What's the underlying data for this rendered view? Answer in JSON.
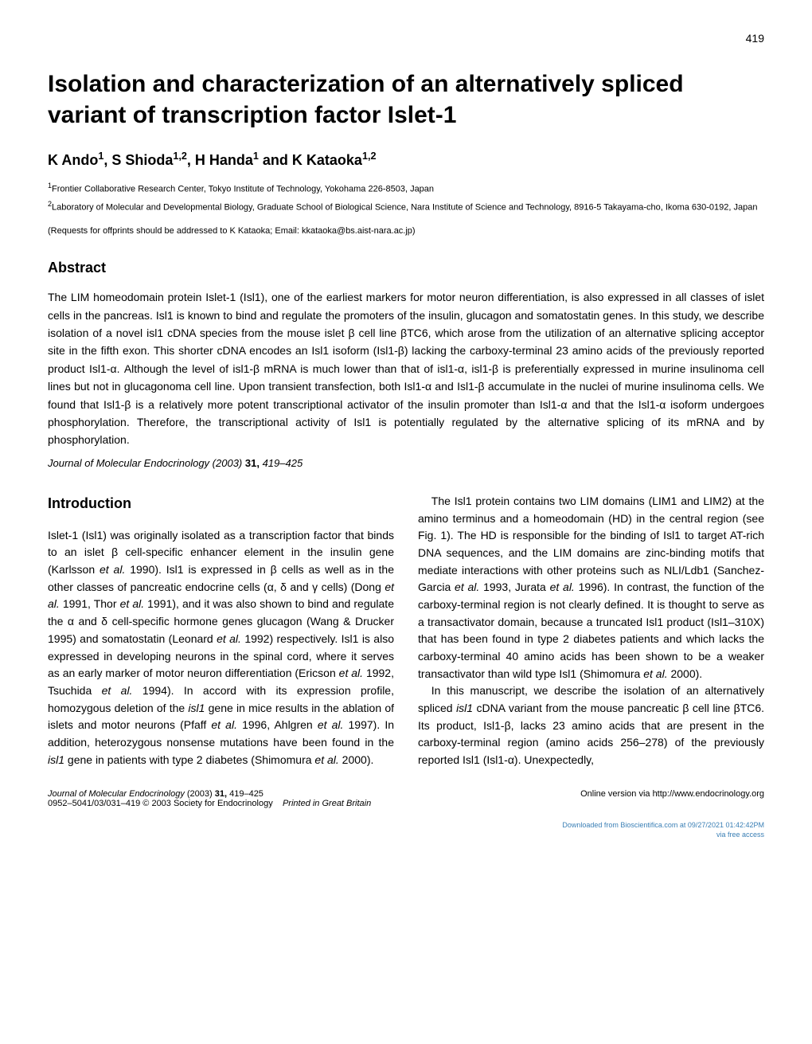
{
  "page_number": "419",
  "title": "Isolation and characterization of an alternatively spliced variant of transcription factor Islet-1",
  "authors_html": "K Ando<sup>1</sup>, S Shioda<sup>1,2</sup>, H Handa<sup>1</sup> and K Kataoka<sup>1,2</sup>",
  "affiliations": [
    "<sup>1</sup>Frontier Collaborative Research Center, Tokyo Institute of Technology, Yokohama 226-8503, Japan",
    "<sup>2</sup>Laboratory of Molecular and Developmental Biology, Graduate School of Biological Science, Nara Institute of Science and Technology, 8916-5 Takayama-cho, Ikoma 630-0192, Japan"
  ],
  "correspondence": "(Requests for offprints should be addressed to K Kataoka; Email: kkataoka@bs.aist-nara.ac.jp)",
  "abstract_heading": "Abstract",
  "abstract_text": "The LIM homeodomain protein Islet-1 (Isl1), one of the earliest markers for motor neuron differentiation, is also expressed in all classes of islet cells in the pancreas. Isl1 is known to bind and regulate the promoters of the insulin, glucagon and somatostatin genes. In this study, we describe isolation of a novel isl1 cDNA species from the mouse islet β cell line βTC6, which arose from the utilization of an alternative splicing acceptor site in the fifth exon. This shorter cDNA encodes an Isl1 isoform (Isl1-β) lacking the carboxy-terminal 23 amino acids of the previously reported product Isl1-α. Although the level of isl1-β mRNA is much lower than that of isl1-α, isl1-β is preferentially expressed in murine insulinoma cell lines but not in glucagonoma cell line. Upon transient transfection, both Isl1-α and Isl1-β accumulate in the nuclei of murine insulinoma cells. We found that Isl1-β is a relatively more potent transcriptional activator of the insulin promoter than Isl1-α and that the Isl1-α isoform undergoes phosphorylation. Therefore, the transcriptional activity of Isl1 is potentially regulated by the alternative splicing of its mRNA and by phosphorylation.",
  "journal_citation_html": "<span class='italic'>Journal of Molecular Endocrinology</span> (2003) <span class='bold'>31,</span> 419–425",
  "introduction_heading": "Introduction",
  "col1_p1": "Islet-1 (Isl1) was originally isolated as a transcription factor that binds to an islet β cell-specific enhancer element in the insulin gene (Karlsson <span class='italic'>et al.</span> 1990). Isl1 is expressed in β cells as well as in the other classes of pancreatic endocrine cells (α, δ and γ cells) (Dong <span class='italic'>et al.</span> 1991, Thor <span class='italic'>et al.</span> 1991), and it was also shown to bind and regulate the α and δ cell-specific hormone genes glucagon (Wang & Drucker 1995) and somatostatin (Leonard <span class='italic'>et al.</span> 1992) respectively. Isl1 is also expressed in developing neurons in the spinal cord, where it serves as an early marker of motor neuron differentiation (Ericson <span class='italic'>et al.</span> 1992, Tsuchida <span class='italic'>et al.</span> 1994). In accord with its expression profile, homozygous deletion of the <span class='italic'>isl1</span> gene in mice results in the ablation of islets and motor neurons (Pfaff <span class='italic'>et al.</span> 1996, Ahlgren <span class='italic'>et al.</span> 1997). In addition, heterozygous nonsense mutations have been found in the <span class='italic'>isl1</span> gene in patients with type 2 diabetes (Shimomura <span class='italic'>et al.</span> 2000).",
  "col2_p1": "The Isl1 protein contains two LIM domains (LIM1 and LIM2) at the amino terminus and a homeodomain (HD) in the central region (see Fig. 1). The HD is responsible for the binding of Isl1 to target AT-rich DNA sequences, and the LIM domains are zinc-binding motifs that mediate interactions with other proteins such as NLI/Ldb1 (Sanchez-Garcia <span class='italic'>et al.</span> 1993, Jurata <span class='italic'>et al.</span> 1996). In contrast, the function of the carboxy-terminal region is not clearly defined. It is thought to serve as a transactivator domain, because a truncated Isl1 product (Isl1–310X) that has been found in type 2 diabetes patients and which lacks the carboxy-terminal 40 amino acids has been shown to be a weaker transactivator than wild type Isl1 (Shimomura <span class='italic'>et al.</span> 2000).",
  "col2_p2": "In this manuscript, we describe the isolation of an alternatively spliced <span class='italic'>isl1</span> cDNA variant from the mouse pancreatic β cell line βTC6. Its product, Isl1-β, lacks 23 amino acids that are present in the carboxy-terminal region (amino acids 256–278) of the previously reported Isl1 (Isl1-α). Unexpectedly,",
  "footer_left_line1_html": "<span class='italic'>Journal of Molecular Endocrinology</span> (2003) <b>31,</b> 419–425",
  "footer_left_line2": "0952–5041/03/031–419 © 2003 Society for Endocrinology",
  "footer_right": "Online version via http://www.endocrinology.org",
  "footer_center": "Printed in Great Britain",
  "downloaded_line1": "Downloaded from Bioscientifica.com at 09/27/2021 01:42:42PM",
  "downloaded_line2": "via free access"
}
